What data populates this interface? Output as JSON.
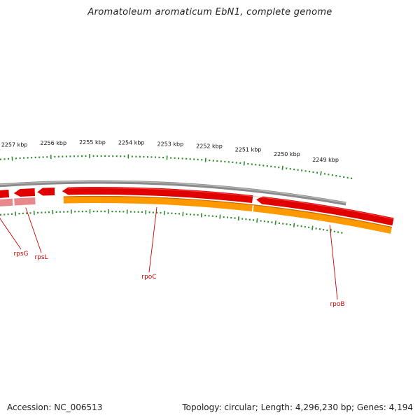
{
  "title": "Aromatoleum aromaticum EbN1, complete genome",
  "accession_text": "Accession: NC_006513",
  "summary_text": "Topology: circular; Length: 4,296,230 bp; Genes: 4,194",
  "colors": {
    "background": "#ffffff",
    "backbone": "#8a8a8a",
    "gene_red": "#e00000",
    "gene_red_light": "#ff7a7a",
    "gene_pink": "#e8888c",
    "gene_orange": "#ff9900",
    "gene_orange_dark": "#c46a00",
    "tick_green": "#2e8b2e",
    "label_red": "#cc0000"
  },
  "ruler": {
    "unit": "kbp",
    "labels": [
      {
        "kbp": 2257,
        "text": "2257 kbp"
      },
      {
        "kbp": 2256,
        "text": "2256 kbp"
      },
      {
        "kbp": 2255,
        "text": "2255 kbp"
      },
      {
        "kbp": 2254,
        "text": "2254 kbp"
      },
      {
        "kbp": 2253,
        "text": "2253 kbp"
      },
      {
        "kbp": 2252,
        "text": "2252 kbp"
      },
      {
        "kbp": 2251,
        "text": "2251 kbp"
      },
      {
        "kbp": 2250,
        "text": "2250 kbp"
      },
      {
        "kbp": 2249,
        "text": "2249 kbp"
      }
    ]
  },
  "genes": [
    {
      "name": "rpsG",
      "strand": "minus"
    },
    {
      "name": "rpsL",
      "strand": "minus"
    },
    {
      "name": "rpoC",
      "strand": "minus"
    },
    {
      "name": "rpoB",
      "strand": "minus"
    }
  ]
}
